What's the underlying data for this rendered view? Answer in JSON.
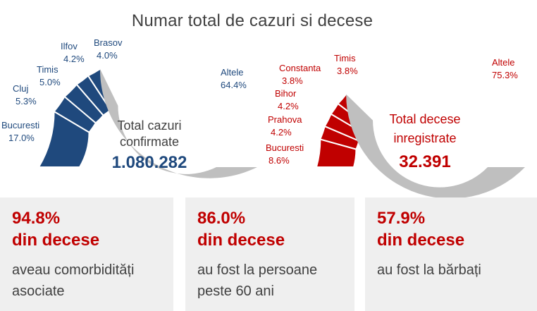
{
  "title": "Numar total de cazuri si decese",
  "colors": {
    "cases": "#1f497d",
    "deaths": "#c00000",
    "other": "#bfbfbf",
    "text": "#404040"
  },
  "chart_data": [
    {
      "type": "pie",
      "variant": "semi-donut",
      "center_label_line1": "Total cazuri",
      "center_label_line2": "confirmate",
      "total": "1.080.282",
      "slices": [
        {
          "label": "Bucuresti",
          "value_text": "17.0%",
          "value": 17.0
        },
        {
          "label": "Cluj",
          "value_text": "5.3%",
          "value": 5.3
        },
        {
          "label": "Timis",
          "value_text": "5.0%",
          "value": 5.0
        },
        {
          "label": "Ilfov",
          "value_text": "4.2%",
          "value": 4.2
        },
        {
          "label": "Brasov",
          "value_text": "4.0%",
          "value": 4.0
        },
        {
          "label": "Altele",
          "value_text": "64.4%",
          "value": 64.4
        }
      ]
    },
    {
      "type": "pie",
      "variant": "semi-donut",
      "center_label_line1": "Total decese",
      "center_label_line2": "inregistrate",
      "total": "32.391",
      "slices": [
        {
          "label": "Bucuresti",
          "value_text": "8.6%",
          "value": 8.6
        },
        {
          "label": "Prahova",
          "value_text": "4.2%",
          "value": 4.2
        },
        {
          "label": "Bihor",
          "value_text": "4.2%",
          "value": 4.2
        },
        {
          "label": "Constanta",
          "value_text": "3.8%",
          "value": 3.8
        },
        {
          "label": "Timis",
          "value_text": "3.8%",
          "value": 3.8
        },
        {
          "label": "Altele",
          "value_text": "75.3%",
          "value": 75.3
        }
      ]
    }
  ],
  "cards": [
    {
      "stat": "94.8%",
      "sub": "din decese",
      "desc": "aveau comorbidități asociate"
    },
    {
      "stat": "86.0%",
      "sub": "din decese",
      "desc": "au fost la persoane peste 60 ani"
    },
    {
      "stat": "57.9%",
      "sub": "din decese",
      "desc": "au fost la bărbați"
    }
  ]
}
